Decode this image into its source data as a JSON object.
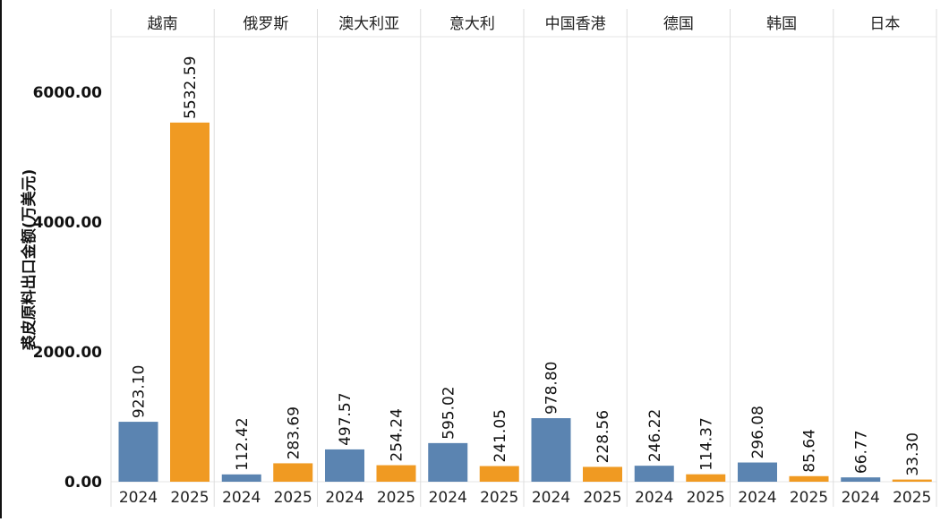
{
  "chart_data": {
    "type": "bar",
    "title": "",
    "ylabel": "裘皮原料出口金额(万美元)",
    "xlabel": "",
    "ylim": [
      0,
      6700
    ],
    "yticks": [
      0,
      2000,
      4000,
      6000
    ],
    "ytick_labels": [
      "0.00",
      "2000.00",
      "4000.00",
      "6000.00"
    ],
    "grid": false,
    "legend": "none",
    "categories": [
      "越南",
      "俄罗斯",
      "澳大利亚",
      "意大利",
      "中国香港",
      "德国",
      "韩国",
      "日本"
    ],
    "years": [
      "2024",
      "2025"
    ],
    "colors": {
      "2024": "#5b84b1",
      "2025": "#f09a22"
    },
    "series": [
      {
        "values": [
          923.1,
          112.42,
          497.57,
          595.02,
          978.8,
          246.22,
          296.08,
          66.77
        ]
      },
      {
        "values": [
          5532.59,
          283.69,
          254.24,
          241.05,
          228.56,
          114.37,
          85.64,
          33.3
        ]
      }
    ],
    "value_labels": [
      [
        "923.10",
        "112.42",
        "497.57",
        "595.02",
        "978.80",
        "246.22",
        "296.08",
        "66.77"
      ],
      [
        "5532.59",
        "283.69",
        "254.24",
        "241.05",
        "228.56",
        "114.37",
        "85.64",
        "33.30"
      ]
    ]
  }
}
